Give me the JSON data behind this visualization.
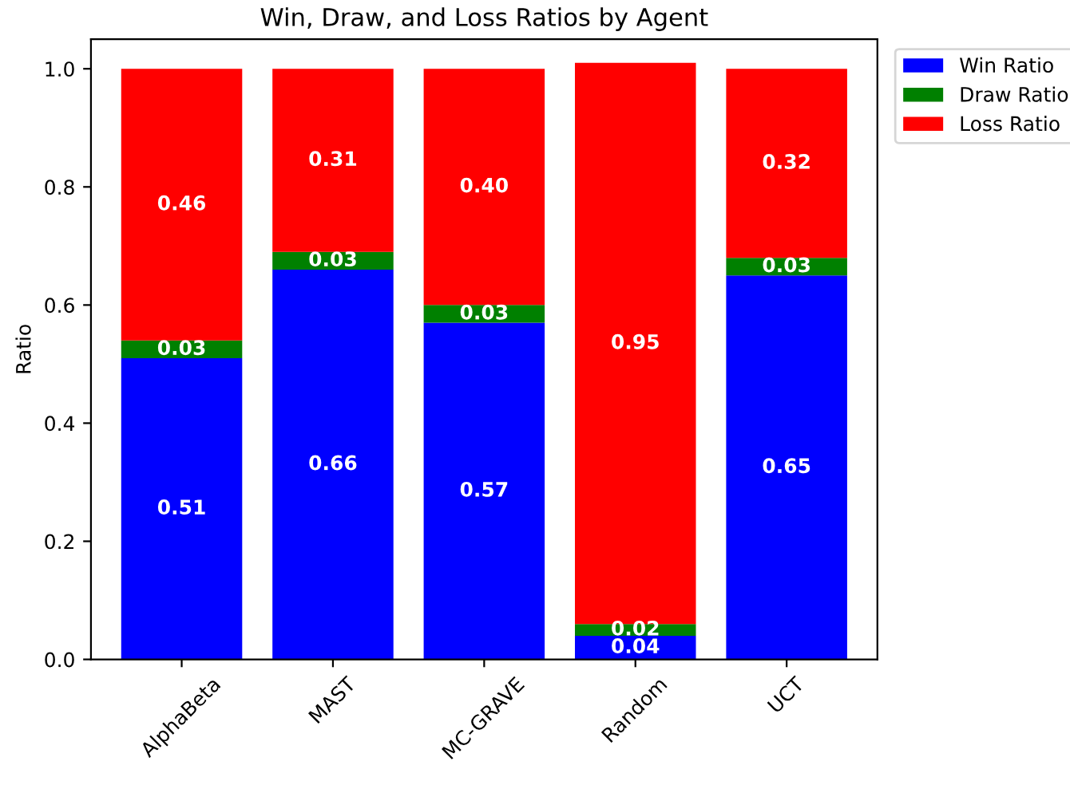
{
  "chart_data": {
    "type": "bar",
    "title": "Win, Draw, and Loss Ratios by Agent",
    "ylabel": "Ratio",
    "categories": [
      "AlphaBeta",
      "MAST",
      "MC-GRAVE",
      "Random",
      "UCT"
    ],
    "stacked": true,
    "series": [
      {
        "name": "Win Ratio",
        "color": "#0000ff",
        "values": [
          0.51,
          0.66,
          0.57,
          0.04,
          0.65
        ],
        "value_labels": [
          "0.51",
          "0.66",
          "0.57",
          "0.04",
          "0.65"
        ]
      },
      {
        "name": "Draw Ratio",
        "color": "#008000",
        "values": [
          0.03,
          0.03,
          0.03,
          0.02,
          0.03
        ],
        "value_labels": [
          "0.03",
          "0.03",
          "0.03",
          "0.02",
          "0.03"
        ]
      },
      {
        "name": "Loss Ratio",
        "color": "#ff0000",
        "values": [
          0.46,
          0.31,
          0.4,
          0.95,
          0.32
        ],
        "value_labels": [
          "0.46",
          "0.31",
          "0.40",
          "0.95",
          "0.32"
        ]
      }
    ],
    "ylim": [
      0,
      1.05
    ],
    "yticks": [
      {
        "value": 0,
        "label": "0.0"
      },
      {
        "value": 0.2,
        "label": "0.2"
      },
      {
        "value": 0.4,
        "label": "0.4"
      },
      {
        "value": 0.6,
        "label": "0.6"
      },
      {
        "value": 0.8,
        "label": "0.8"
      },
      {
        "value": 1,
        "label": "1.0"
      }
    ],
    "legend": "top right",
    "grid": false
  }
}
